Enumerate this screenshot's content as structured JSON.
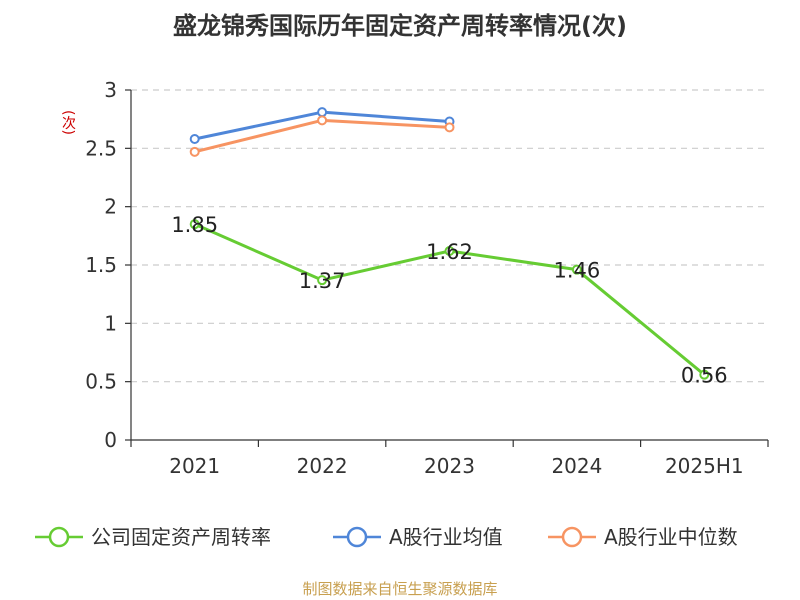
{
  "chart_data": {
    "type": "line",
    "title": "盛龙锦秀国际历年固定资产周转率情况(次)",
    "ylabel": "(次)",
    "categories": [
      "2021",
      "2022",
      "2023",
      "2024",
      "2025H1"
    ],
    "yticks": [
      "0",
      "0.5",
      "1",
      "1.5",
      "2",
      "2.5",
      "3"
    ],
    "ylim": [
      0,
      3
    ],
    "grid": true,
    "legend_position": "bottom",
    "series": [
      {
        "name": "公司固定资产周转率",
        "color": "#66cc33",
        "values": [
          1.85,
          1.37,
          1.62,
          1.46,
          0.56
        ],
        "labels": [
          "1.85",
          "1.37",
          "1.62",
          "1.46",
          "0.56"
        ]
      },
      {
        "name": "A股行业均值",
        "color": "#4f86d8",
        "values": [
          2.58,
          2.81,
          2.73,
          null,
          null
        ]
      },
      {
        "name": "A股行业中位数",
        "color": "#f79462",
        "values": [
          2.47,
          2.74,
          2.68,
          null,
          null
        ]
      }
    ]
  },
  "source": "制图数据来自恒生聚源数据库"
}
